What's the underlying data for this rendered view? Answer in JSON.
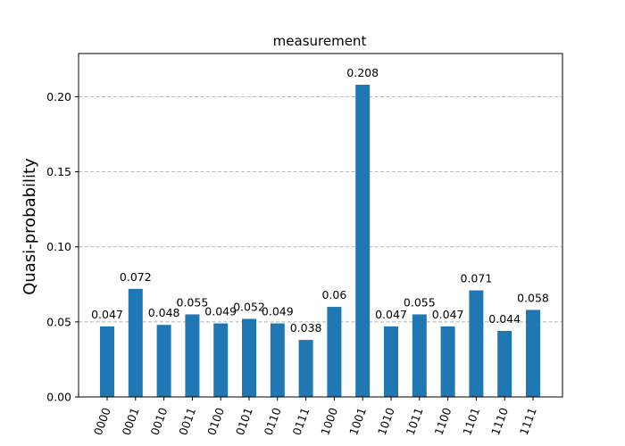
{
  "chart_data": {
    "type": "bar",
    "title": "measurement",
    "xlabel": "",
    "ylabel": "Quasi-probability",
    "categories": [
      "0000",
      "0001",
      "0010",
      "0011",
      "0100",
      "0101",
      "0110",
      "0111",
      "1000",
      "1001",
      "1010",
      "1011",
      "1100",
      "1101",
      "1110",
      "1111"
    ],
    "values": [
      0.047,
      0.072,
      0.048,
      0.055,
      0.049,
      0.052,
      0.049,
      0.038,
      0.06,
      0.208,
      0.047,
      0.055,
      0.047,
      0.071,
      0.044,
      0.058
    ],
    "value_labels": [
      "0.047",
      "0.072",
      "0.048",
      "0.055",
      "0.049",
      "0.052",
      "0.049",
      "0.038",
      "0.06",
      "0.208",
      "0.047",
      "0.055",
      "0.047",
      "0.071",
      "0.044",
      "0.058"
    ],
    "ylim": [
      0,
      0.2288
    ],
    "yticks": [
      0,
      0.05,
      0.1,
      0.15,
      0.2
    ],
    "ytick_labels": [
      "0.00",
      "0.05",
      "0.10",
      "0.15",
      "0.20"
    ],
    "grid": "y-dashed",
    "bar_color": "#1f77b4"
  }
}
